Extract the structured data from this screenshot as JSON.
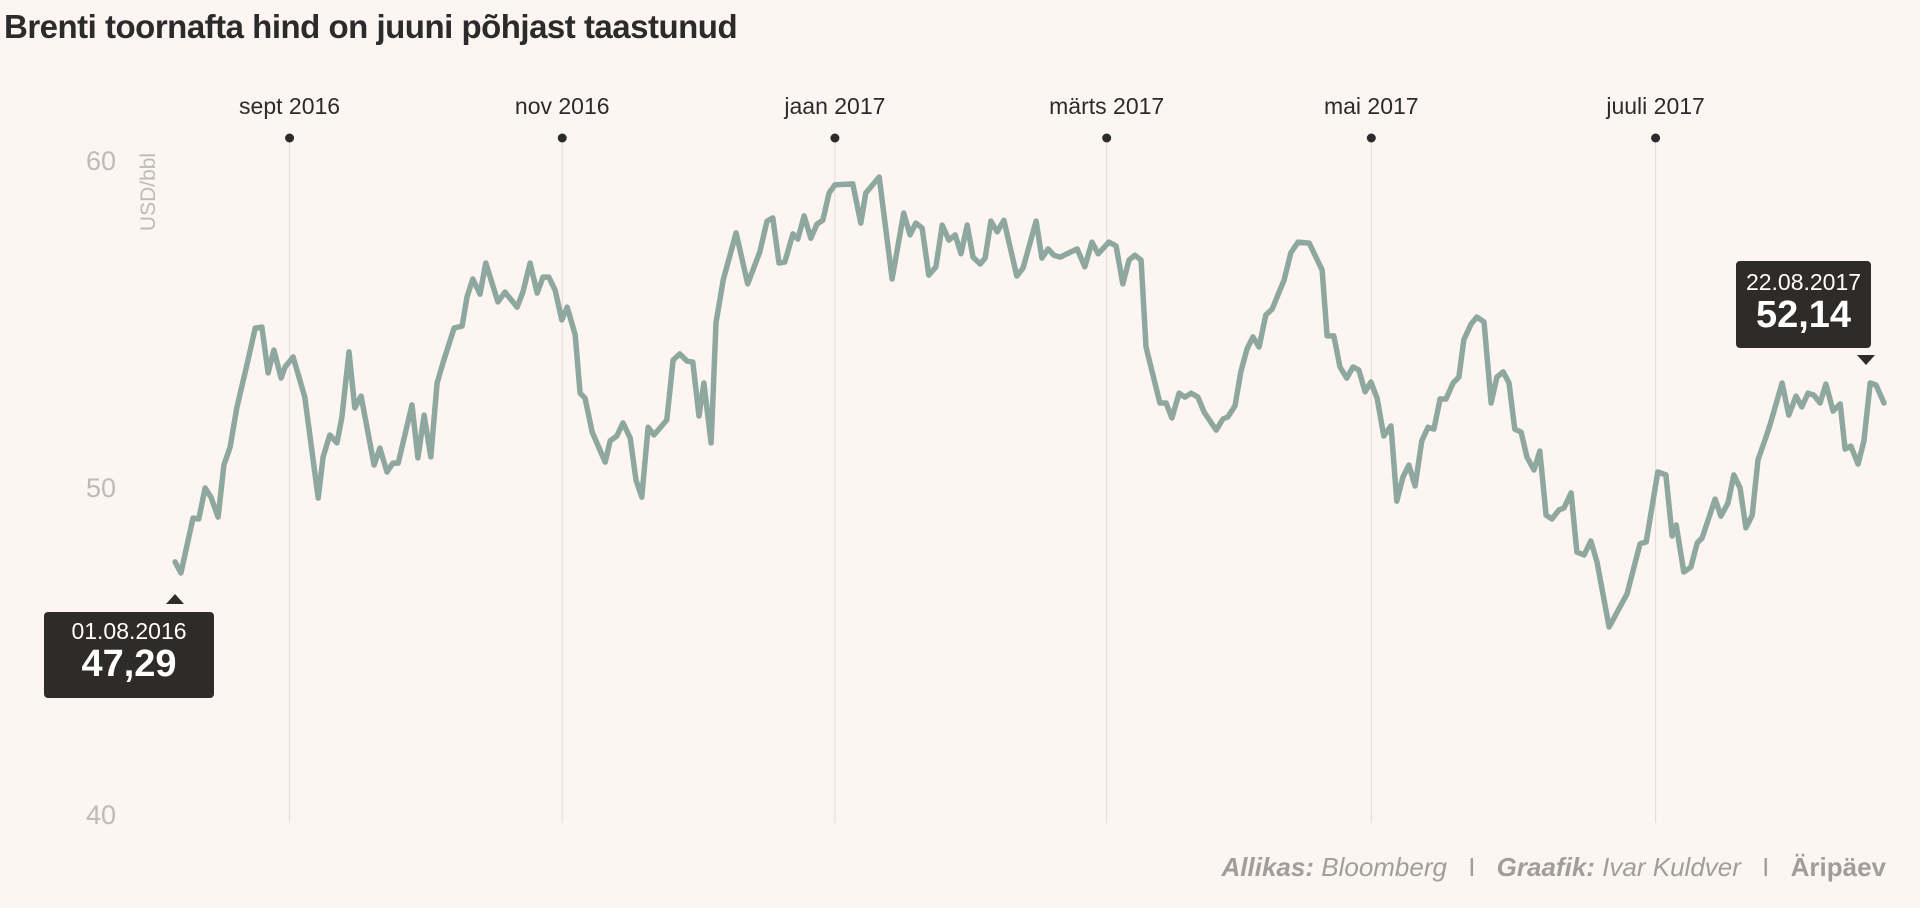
{
  "title": "Brenti toornafta hind on juuni põhjast taastunud",
  "footer": {
    "source_label": "Allikas:",
    "source": "Bloomberg",
    "graphic_label": "Graafik:",
    "graphic": "Ivar Kuldver",
    "separator": "I",
    "brand": "Äripäev"
  },
  "colors": {
    "line": "#8fa89f",
    "background": "#fdf5f2",
    "tooltip": "#2e2b28",
    "axis_text": "#bdbab8",
    "grid": "#e2dcd9"
  },
  "chart_data": {
    "type": "line",
    "title": "Brenti toornafta hind on juuni põhjast taastunud",
    "ylabel": "USD/bbl",
    "xlabel": "",
    "x_unit": "days since 01.08.2016",
    "ylim": [
      40,
      60
    ],
    "yticks": [
      {
        "value": 40,
        "label": "40"
      },
      {
        "value": 50,
        "label": "50"
      },
      {
        "value": 60,
        "label": "60"
      }
    ],
    "xticks": [
      {
        "day": 31,
        "label": "sept 2016"
      },
      {
        "day": 92,
        "label": "nov 2016"
      },
      {
        "day": 153,
        "label": "jaan 2017"
      },
      {
        "day": 213.8,
        "label": "märts 2017"
      },
      {
        "day": 273,
        "label": "mai 2017"
      },
      {
        "day": 336.6,
        "label": "juuli 2017"
      }
    ],
    "grid": "vertical at month ticks",
    "annotations": [
      {
        "date": "01.08.2016",
        "value": "47,29",
        "position": "start"
      },
      {
        "date": "22.08.2017",
        "value": "52,14",
        "position": "end"
      }
    ],
    "series": [
      {
        "name": "Brent",
        "points": [
          [
            5.4,
            47.71
          ],
          [
            6.7,
            47.37
          ],
          [
            9.4,
            49.05
          ],
          [
            10.7,
            49.02
          ],
          [
            12.1,
            49.97
          ],
          [
            13.4,
            49.69
          ],
          [
            15.0,
            49.08
          ],
          [
            16.3,
            50.67
          ],
          [
            17.7,
            51.22
          ],
          [
            19.2,
            52.42
          ],
          [
            21.7,
            53.88
          ],
          [
            23.3,
            54.86
          ],
          [
            24.8,
            54.89
          ],
          [
            26.2,
            53.49
          ],
          [
            27.5,
            54.19
          ],
          [
            29.1,
            53.33
          ],
          [
            30.0,
            53.67
          ],
          [
            31.8,
            53.98
          ],
          [
            34.4,
            52.75
          ],
          [
            37.4,
            49.66
          ],
          [
            38.5,
            50.92
          ],
          [
            40.0,
            51.59
          ],
          [
            41.6,
            51.35
          ],
          [
            42.7,
            52.14
          ],
          [
            44.3,
            54.13
          ],
          [
            45.6,
            52.42
          ],
          [
            47.0,
            52.78
          ],
          [
            49.9,
            50.67
          ],
          [
            51.2,
            51.19
          ],
          [
            52.8,
            50.46
          ],
          [
            54.1,
            50.73
          ],
          [
            55.3,
            50.73
          ],
          [
            58.4,
            52.51
          ],
          [
            59.7,
            50.89
          ],
          [
            61.1,
            52.2
          ],
          [
            62.6,
            50.92
          ],
          [
            64.0,
            53.18
          ],
          [
            65.3,
            53.79
          ],
          [
            67.8,
            54.86
          ],
          [
            69.6,
            54.92
          ],
          [
            70.7,
            55.81
          ],
          [
            72.0,
            56.36
          ],
          [
            73.6,
            55.9
          ],
          [
            74.9,
            56.85
          ],
          [
            77.6,
            55.66
          ],
          [
            79.2,
            55.96
          ],
          [
            81.9,
            55.5
          ],
          [
            83.2,
            55.96
          ],
          [
            84.8,
            56.85
          ],
          [
            86.4,
            55.93
          ],
          [
            87.7,
            56.42
          ],
          [
            89.0,
            56.42
          ],
          [
            90.4,
            56.02
          ],
          [
            91.9,
            55.11
          ],
          [
            93.1,
            55.5
          ],
          [
            94.9,
            54.65
          ],
          [
            96.0,
            52.87
          ],
          [
            97.1,
            52.72
          ],
          [
            98.7,
            51.68
          ],
          [
            101.6,
            50.76
          ],
          [
            102.7,
            51.41
          ],
          [
            104.2,
            51.56
          ],
          [
            105.6,
            51.96
          ],
          [
            107.2,
            51.5
          ],
          [
            108.5,
            50.21
          ],
          [
            109.8,
            49.69
          ],
          [
            111.2,
            51.83
          ],
          [
            112.5,
            51.59
          ],
          [
            115.4,
            52.05
          ],
          [
            116.8,
            53.88
          ],
          [
            118.3,
            54.07
          ],
          [
            119.9,
            53.85
          ],
          [
            121.2,
            53.82
          ],
          [
            122.6,
            52.17
          ],
          [
            123.7,
            53.18
          ],
          [
            125.3,
            51.35
          ],
          [
            126.4,
            55.02
          ],
          [
            128.0,
            56.33
          ],
          [
            130.9,
            57.77
          ],
          [
            133.5,
            56.21
          ],
          [
            136.2,
            57.19
          ],
          [
            137.8,
            58.13
          ],
          [
            139.1,
            58.23
          ],
          [
            140.5,
            56.85
          ],
          [
            141.8,
            56.88
          ],
          [
            143.6,
            57.74
          ],
          [
            144.7,
            57.58
          ],
          [
            146.1,
            58.29
          ],
          [
            147.6,
            57.61
          ],
          [
            149.0,
            58.04
          ],
          [
            150.3,
            58.16
          ],
          [
            151.7,
            58.99
          ],
          [
            153.0,
            59.24
          ],
          [
            157.0,
            59.27
          ],
          [
            158.8,
            58.07
          ],
          [
            159.9,
            58.99
          ],
          [
            162.9,
            59.48
          ],
          [
            165.8,
            56.36
          ],
          [
            168.4,
            58.38
          ],
          [
            169.8,
            57.71
          ],
          [
            171.1,
            58.07
          ],
          [
            172.5,
            57.92
          ],
          [
            174.0,
            56.48
          ],
          [
            175.6,
            56.73
          ],
          [
            177.0,
            58.01
          ],
          [
            178.5,
            57.55
          ],
          [
            179.9,
            57.71
          ],
          [
            181.2,
            57.13
          ],
          [
            182.6,
            58.01
          ],
          [
            183.9,
            57.03
          ],
          [
            185.5,
            56.82
          ],
          [
            186.6,
            57.0
          ],
          [
            187.9,
            58.13
          ],
          [
            189.3,
            57.8
          ],
          [
            190.8,
            58.16
          ],
          [
            193.7,
            56.45
          ],
          [
            195.1,
            56.7
          ],
          [
            198.0,
            58.13
          ],
          [
            199.3,
            57.0
          ],
          [
            200.7,
            57.28
          ],
          [
            202.0,
            57.09
          ],
          [
            203.4,
            57.03
          ],
          [
            207.2,
            57.28
          ],
          [
            208.9,
            56.73
          ],
          [
            210.5,
            57.49
          ],
          [
            211.9,
            57.13
          ],
          [
            214.3,
            57.49
          ],
          [
            215.9,
            57.37
          ],
          [
            217.4,
            56.21
          ],
          [
            218.8,
            56.94
          ],
          [
            220.1,
            57.09
          ],
          [
            221.5,
            56.94
          ],
          [
            222.6,
            54.28
          ],
          [
            225.7,
            52.57
          ],
          [
            227.1,
            52.57
          ],
          [
            228.4,
            52.11
          ],
          [
            230.0,
            52.87
          ],
          [
            231.3,
            52.75
          ],
          [
            232.7,
            52.87
          ],
          [
            234.2,
            52.75
          ],
          [
            235.6,
            52.29
          ],
          [
            238.3,
            51.74
          ],
          [
            239.8,
            52.08
          ],
          [
            240.9,
            52.14
          ],
          [
            242.5,
            52.48
          ],
          [
            243.8,
            53.52
          ],
          [
            245.2,
            54.22
          ],
          [
            246.5,
            54.59
          ],
          [
            247.9,
            54.28
          ],
          [
            249.4,
            55.26
          ],
          [
            250.8,
            55.44
          ],
          [
            253.5,
            56.33
          ],
          [
            255.0,
            57.16
          ],
          [
            256.6,
            57.49
          ],
          [
            259.1,
            57.46
          ],
          [
            262.0,
            56.64
          ],
          [
            263.1,
            54.62
          ],
          [
            264.6,
            54.62
          ],
          [
            266.0,
            53.67
          ],
          [
            267.5,
            53.33
          ],
          [
            268.9,
            53.67
          ],
          [
            270.2,
            53.58
          ],
          [
            271.6,
            52.91
          ],
          [
            272.9,
            53.21
          ],
          [
            274.3,
            52.72
          ],
          [
            275.8,
            51.56
          ],
          [
            277.4,
            51.87
          ],
          [
            278.7,
            49.57
          ],
          [
            280.1,
            50.31
          ],
          [
            281.4,
            50.67
          ],
          [
            282.8,
            50.03
          ],
          [
            284.3,
            51.41
          ],
          [
            285.7,
            51.83
          ],
          [
            287.0,
            51.77
          ],
          [
            288.4,
            52.69
          ],
          [
            289.7,
            52.69
          ],
          [
            291.3,
            53.18
          ],
          [
            292.6,
            53.36
          ],
          [
            293.7,
            54.5
          ],
          [
            295.3,
            54.98
          ],
          [
            296.6,
            55.2
          ],
          [
            298.2,
            55.05
          ],
          [
            299.8,
            52.57
          ],
          [
            301.1,
            53.36
          ],
          [
            302.5,
            53.52
          ],
          [
            303.8,
            53.18
          ],
          [
            305.1,
            51.77
          ],
          [
            306.5,
            51.68
          ],
          [
            307.8,
            50.92
          ],
          [
            309.4,
            50.52
          ],
          [
            310.7,
            51.1
          ],
          [
            312.1,
            49.14
          ],
          [
            313.4,
            49.02
          ],
          [
            315.0,
            49.3
          ],
          [
            316.1,
            49.36
          ],
          [
            317.7,
            49.82
          ],
          [
            319.0,
            48.01
          ],
          [
            320.6,
            47.92
          ],
          [
            322.1,
            48.35
          ],
          [
            323.5,
            47.71
          ],
          [
            326.2,
            45.72
          ],
          [
            330.2,
            46.73
          ],
          [
            333.1,
            48.26
          ],
          [
            334.5,
            48.32
          ],
          [
            337.1,
            50.46
          ],
          [
            338.9,
            50.37
          ],
          [
            340.3,
            48.5
          ],
          [
            341.2,
            48.84
          ],
          [
            342.9,
            47.4
          ],
          [
            344.5,
            47.55
          ],
          [
            345.9,
            48.29
          ],
          [
            347.0,
            48.44
          ],
          [
            349.9,
            49.63
          ],
          [
            351.2,
            49.11
          ],
          [
            352.8,
            49.51
          ],
          [
            354.1,
            50.37
          ],
          [
            355.5,
            49.97
          ],
          [
            356.8,
            48.75
          ],
          [
            358.2,
            49.14
          ],
          [
            359.5,
            50.83
          ],
          [
            361.3,
            51.53
          ],
          [
            362.2,
            51.9
          ],
          [
            364.9,
            53.18
          ],
          [
            366.4,
            52.2
          ],
          [
            368.0,
            52.78
          ],
          [
            369.3,
            52.45
          ],
          [
            370.7,
            52.87
          ],
          [
            372.0,
            52.81
          ],
          [
            373.4,
            52.57
          ],
          [
            374.7,
            53.15
          ],
          [
            376.3,
            52.32
          ],
          [
            377.9,
            52.54
          ],
          [
            379.0,
            51.16
          ],
          [
            380.3,
            51.25
          ],
          [
            381.9,
            50.7
          ],
          [
            383.2,
            51.41
          ],
          [
            384.6,
            53.18
          ],
          [
            385.9,
            53.12
          ],
          [
            387.7,
            52.57
          ]
        ]
      }
    ]
  }
}
